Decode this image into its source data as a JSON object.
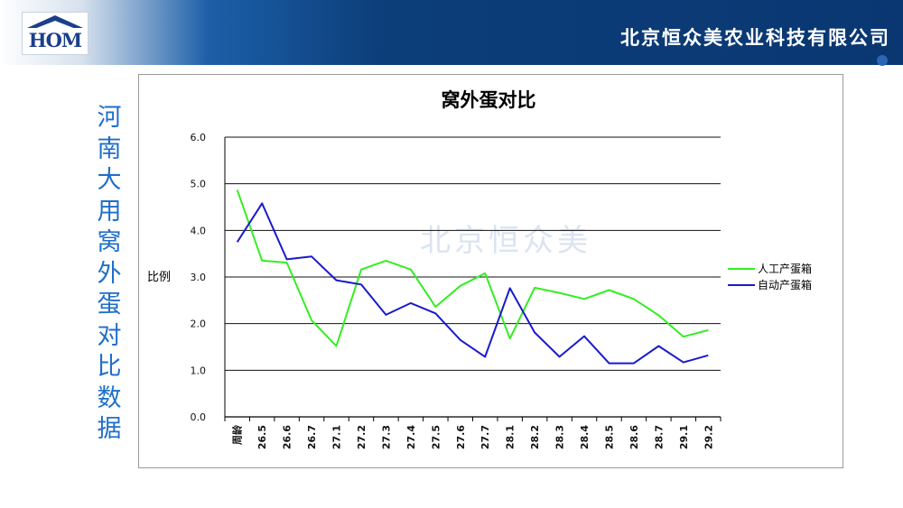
{
  "header": {
    "logo_text": "HOM",
    "company": "北京恒众美农业科技有限公司"
  },
  "side_title": "河南大用窝外蛋对比数据",
  "watermark": "北京恒众美",
  "colors": {
    "series1": "#33ee22",
    "series2": "#1a1acc",
    "accent": "#1f6fc8"
  },
  "chart_data": {
    "type": "line",
    "title": "窝外蛋对比",
    "ylabel": "比例",
    "xlabel": "",
    "ylim": [
      0,
      6
    ],
    "y_ticks": [
      "0.0",
      "1.0",
      "2.0",
      "3.0",
      "4.0",
      "5.0",
      "6.0"
    ],
    "grid": true,
    "legend": "right",
    "categories": [
      "周龄",
      "26.5",
      "26.6",
      "26.7",
      "27.1",
      "27.2",
      "27.3",
      "27.4",
      "27.5",
      "27.6",
      "27.7",
      "28.1",
      "28.2",
      "28.3",
      "28.4",
      "28.5",
      "28.6",
      "28.7",
      "29.1",
      "29.2"
    ],
    "series": [
      {
        "name": "人工产蛋箱",
        "values": [
          4.87,
          3.35,
          3.31,
          2.07,
          1.52,
          3.16,
          3.35,
          3.16,
          2.36,
          2.81,
          3.08,
          1.68,
          2.77,
          2.66,
          2.53,
          2.72,
          2.53,
          2.18,
          1.72,
          1.86
        ]
      },
      {
        "name": "自动产蛋箱",
        "values": [
          3.75,
          4.58,
          3.38,
          3.44,
          2.93,
          2.84,
          2.19,
          2.44,
          2.22,
          1.65,
          1.29,
          2.76,
          1.81,
          1.29,
          1.73,
          1.15,
          1.15,
          1.52,
          1.17,
          1.32
        ]
      }
    ]
  }
}
